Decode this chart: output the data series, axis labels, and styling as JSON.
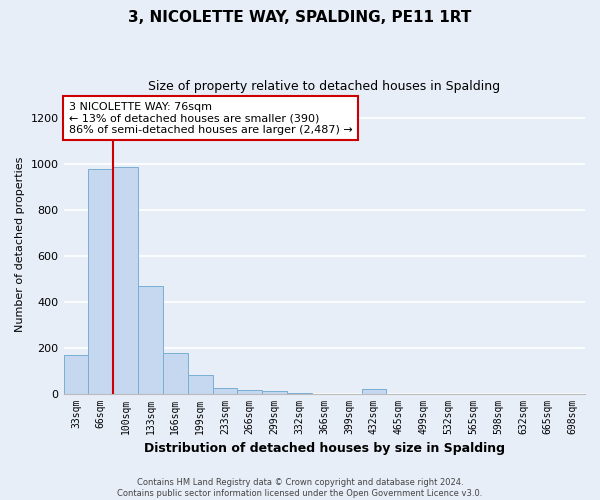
{
  "title": "3, NICOLETTE WAY, SPALDING, PE11 1RT",
  "subtitle": "Size of property relative to detached houses in Spalding",
  "xlabel": "Distribution of detached houses by size in Spalding",
  "ylabel": "Number of detached properties",
  "categories": [
    "33sqm",
    "66sqm",
    "100sqm",
    "133sqm",
    "166sqm",
    "199sqm",
    "233sqm",
    "266sqm",
    "299sqm",
    "332sqm",
    "366sqm",
    "399sqm",
    "432sqm",
    "465sqm",
    "499sqm",
    "532sqm",
    "565sqm",
    "598sqm",
    "632sqm",
    "665sqm",
    "698sqm"
  ],
  "values": [
    170,
    978,
    990,
    468,
    178,
    80,
    25,
    15,
    12,
    4,
    0,
    0,
    18,
    0,
    0,
    0,
    0,
    0,
    0,
    0,
    0
  ],
  "bar_color": "#c5d8f0",
  "bar_edge_color": "#7aaed4",
  "annotation_text": "3 NICOLETTE WAY: 76sqm\n← 13% of detached houses are smaller (390)\n86% of semi-detached houses are larger (2,487) →",
  "annotation_box_color": "#ffffff",
  "annotation_border_color": "#cc0000",
  "ylim": [
    0,
    1300
  ],
  "yticks": [
    0,
    200,
    400,
    600,
    800,
    1000,
    1200
  ],
  "footnote": "Contains HM Land Registry data © Crown copyright and database right 2024.\nContains public sector information licensed under the Open Government Licence v3.0.",
  "background_color": "#e8eef8",
  "grid_color": "#ffffff",
  "title_fontsize": 11,
  "subtitle_fontsize": 9,
  "xlabel_fontsize": 9,
  "ylabel_fontsize": 8,
  "tick_fontsize": 7,
  "annotation_fontsize": 8,
  "footnote_fontsize": 6
}
